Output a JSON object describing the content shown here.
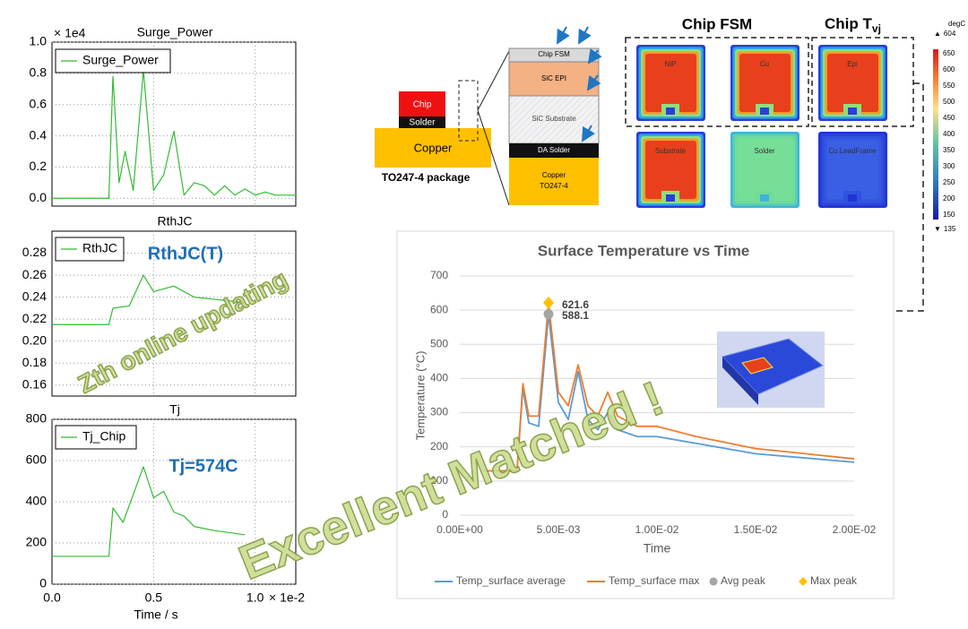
{
  "chart_data": [
    {
      "type": "line",
      "title": "Surge_Power",
      "y_scale_label": "× 1e4",
      "xlim": [
        0,
        1.2
      ],
      "ylim": [
        -0.05,
        1.0
      ],
      "yticks": [
        {
          "value": 0,
          "label": "0.0"
        },
        0.2,
        0.4,
        0.6,
        0.8,
        {
          "value": 1.0,
          "label": "1.0"
        }
      ],
      "grid": true,
      "legend": "upper left",
      "series": [
        {
          "name": "Surge_Power",
          "color": "#33bb33",
          "x": [
            0,
            0.28,
            0.3,
            0.33,
            0.36,
            0.4,
            0.45,
            0.5,
            0.55,
            0.6,
            0.65,
            0.7,
            0.75,
            0.8,
            0.85,
            0.9,
            0.95,
            1.0,
            1.05,
            1.1,
            1.2
          ],
          "values": [
            0,
            0,
            0.78,
            0.1,
            0.3,
            0.05,
            0.82,
            0.05,
            0.15,
            0.43,
            0.02,
            0.1,
            0.08,
            0.02,
            0.08,
            0.02,
            0.06,
            0.02,
            0.04,
            0.02,
            0.02
          ]
        }
      ]
    },
    {
      "type": "line",
      "title": "RthJC",
      "annotation": "RthJC(T)",
      "xlim": [
        0,
        1.2
      ],
      "ylim": [
        0.15,
        0.3
      ],
      "yticks": [
        0.16,
        0.18,
        {
          "value": 0.2,
          "label": "0.20"
        },
        0.22,
        0.24,
        0.26,
        0.28
      ],
      "grid": true,
      "legend": "upper left",
      "series": [
        {
          "name": "RthJC",
          "color": "#33bb33",
          "x": [
            0,
            0.28,
            0.3,
            0.38,
            0.45,
            0.5,
            0.6,
            0.7,
            0.8,
            0.95
          ],
          "values": [
            0.215,
            0.215,
            0.23,
            0.232,
            0.26,
            0.245,
            0.25,
            0.24,
            0.238,
            0.235
          ]
        }
      ]
    },
    {
      "type": "line",
      "title": "Tj",
      "annotation": "Tj=574C",
      "xlabel": "Time / s",
      "x_scale_label": "× 1e-2",
      "xlim": [
        0,
        1.2
      ],
      "ylim": [
        0,
        800
      ],
      "xticks": [
        {
          "value": 0,
          "label": "0.0"
        },
        0.5,
        {
          "value": 1.0,
          "label": "1.0"
        }
      ],
      "yticks": [
        0,
        200,
        400,
        600,
        800
      ],
      "grid": true,
      "legend": "upper left",
      "series": [
        {
          "name": "Tj_Chip",
          "color": "#33bb33",
          "x": [
            0,
            0.28,
            0.3,
            0.35,
            0.45,
            0.5,
            0.55,
            0.6,
            0.65,
            0.7,
            0.8,
            0.95
          ],
          "values": [
            135,
            135,
            370,
            300,
            570,
            420,
            450,
            350,
            330,
            280,
            260,
            240
          ]
        }
      ]
    },
    {
      "type": "line",
      "title": "Surface Temperature vs Time",
      "xlabel": "Time",
      "ylabel": "Temperature (°C)",
      "xlim": [
        0,
        0.02
      ],
      "ylim": [
        0,
        700
      ],
      "xticks": [
        {
          "value": 0,
          "label": "0.00E+00"
        },
        {
          "value": 0.005,
          "label": "5.00E-03"
        },
        {
          "value": 0.01,
          "label": "1.00E-02"
        },
        {
          "value": 0.015,
          "label": "1.50E-02"
        },
        {
          "value": 0.02,
          "label": "2.00E-02"
        }
      ],
      "yticks": [
        0,
        100,
        200,
        300,
        400,
        500,
        600,
        700
      ],
      "grid": true,
      "legend": "bottom",
      "series": [
        {
          "name": "Temp_surface average",
          "color": "#5b9bd5",
          "x": [
            0.0012,
            0.0029,
            0.0032,
            0.0035,
            0.004,
            0.0045,
            0.005,
            0.0055,
            0.006,
            0.0065,
            0.007,
            0.0075,
            0.008,
            0.009,
            0.01,
            0.012,
            0.015,
            0.02
          ],
          "values": [
            130,
            130,
            370,
            270,
            260,
            588.1,
            330,
            280,
            420,
            280,
            250,
            300,
            250,
            230,
            230,
            210,
            180,
            155
          ]
        },
        {
          "name": "Temp_surface max",
          "color": "#ed7d31",
          "x": [
            0.0012,
            0.0029,
            0.0032,
            0.0035,
            0.004,
            0.0045,
            0.005,
            0.0055,
            0.006,
            0.0065,
            0.007,
            0.0075,
            0.008,
            0.009,
            0.01,
            0.012,
            0.015,
            0.02
          ],
          "values": [
            130,
            130,
            385,
            290,
            290,
            621.6,
            360,
            320,
            440,
            320,
            290,
            360,
            290,
            260,
            260,
            230,
            195,
            165
          ]
        },
        {
          "name": "Avg peak",
          "color": "#a5a5a5",
          "marker": "circle",
          "x": [
            0.0045
          ],
          "values": [
            588.1
          ]
        },
        {
          "name": "Max peak",
          "color": "#ffc000",
          "marker": "diamond",
          "x": [
            0.0045
          ],
          "values": [
            621.6
          ]
        }
      ]
    }
  ],
  "diagram": {
    "package": {
      "chip": "Chip",
      "solder": "Solder",
      "copper": "Copper",
      "caption": "TO247-4 package"
    },
    "layers": [
      [
        "Chip FSM"
      ],
      [
        "SiC EPI"
      ],
      [
        "SiC Substrate"
      ],
      [
        "DA Solder"
      ],
      [
        "Copper",
        "TO247-4"
      ]
    ],
    "fsm_heading": "Chip FSM",
    "tvj_heading": {
      "text": "Chip T",
      "sub": "vj"
    },
    "tiles": [
      "NiP",
      "Cu",
      "Epi",
      "Substrate",
      "Solder",
      "Cu LeadFrame"
    ],
    "colorbar": {
      "unit": "degC",
      "max": {
        "symbol": "▲",
        "value": 604
      },
      "min": {
        "symbol": "▼",
        "value": 135
      },
      "ticks": [
        650,
        600,
        550,
        500,
        450,
        400,
        350,
        300,
        250,
        200,
        150
      ]
    }
  },
  "annotations": [
    "Zth online updating",
    "Excellent Matched !"
  ]
}
